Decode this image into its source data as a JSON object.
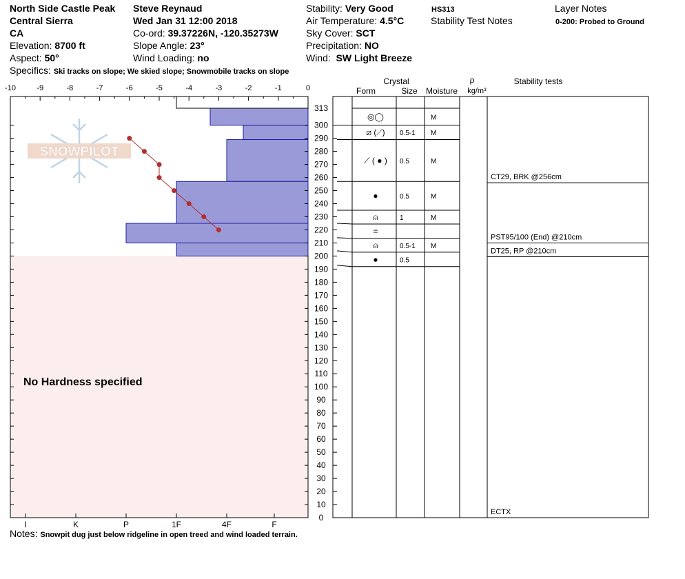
{
  "header": {
    "location": "North Side Castle Peak",
    "region": "Central Sierra",
    "state": "CA",
    "elevation_label": "Elevation:",
    "elevation": "8700 ft",
    "aspect_label": "Aspect:",
    "aspect": "50°",
    "observer": "Steve Reynaud",
    "datetime": "Wed Jan 31 12:00 2018",
    "coord_label": "Co-ord:",
    "coord": "39.37226N, -120.35273W",
    "slope_label": "Slope Angle:",
    "slope": "23°",
    "wind_loading_label": "Wind Loading:",
    "wind_loading": "no",
    "stability_label": "Stability:",
    "stability": "Very Good",
    "air_temp_label": "Air Temperature:",
    "air_temp": "4.5°C",
    "sky_label": "Sky Cover:",
    "sky": "SCT",
    "precip_label": "Precipitation:",
    "precip": "NO",
    "wind_label": "Wind:",
    "wind": "SW Light Breeze",
    "hs": "HS313",
    "stability_notes_title": "Stability Test Notes",
    "layer_notes_title": "Layer Notes",
    "layer_note": "0-200: Probed to Ground",
    "specifics_label": "Specifics:",
    "specifics": "Ski tracks on slope; We skied slope; Snowmobile tracks on slope"
  },
  "notes": {
    "label": "Notes:",
    "text": "Snowpit dug just below ridgeline in open treed and wind loaded terrain."
  },
  "no_hardness": "No Hardness specified",
  "logo_text": "SNOWPILOT",
  "table_headers": {
    "crystal": "Crystal",
    "form": "Form",
    "size": "Size",
    "moisture": "Moisture",
    "rho": "ρ",
    "density_unit": "kg/m³",
    "stability_tests": "Stability tests"
  },
  "colors": {
    "hardness_fill": "#9a9ad8",
    "hardness_stroke": "#1a1aa0",
    "temperature": "#b03030",
    "no_hardness_bg": "#fdeeee"
  },
  "chart_data": {
    "type": "snow_profile",
    "temperature_axis": {
      "ticks": [
        -10,
        -9,
        -8,
        -7,
        -6,
        -5,
        -4,
        -3,
        -2,
        -1,
        0
      ],
      "range": [
        -10,
        0
      ],
      "unit": "°C"
    },
    "hardness_axis": {
      "ticks": [
        "I",
        "K",
        "P",
        "1F",
        "4F",
        "F"
      ]
    },
    "depth_axis": {
      "range": [
        0,
        313
      ],
      "top_label": 313,
      "unit": "cm",
      "ticks": [
        300,
        290,
        280,
        270,
        260,
        250,
        240,
        230,
        220,
        210,
        200,
        190,
        180,
        170,
        160,
        150,
        140,
        130,
        120,
        110,
        100,
        90,
        80,
        70,
        60,
        50,
        40,
        30,
        20,
        10,
        0
      ]
    },
    "hardness_layers": [
      {
        "top": 313,
        "bottom": 300,
        "hardness": "4F+"
      },
      {
        "top": 300,
        "bottom": 289,
        "hardness": "4F-"
      },
      {
        "top": 289,
        "bottom": 257,
        "hardness": "4F"
      },
      {
        "top": 257,
        "bottom": 225,
        "hardness": "1F"
      },
      {
        "top": 225,
        "bottom": 210,
        "hardness": "P"
      },
      {
        "top": 210,
        "bottom": 200,
        "hardness": "1F"
      }
    ],
    "temperature_profile": [
      {
        "depth": 290,
        "temp": -6.0
      },
      {
        "depth": 280,
        "temp": -5.5
      },
      {
        "depth": 270,
        "temp": -5.0
      },
      {
        "depth": 260,
        "temp": -5.0
      },
      {
        "depth": 250,
        "temp": -4.5
      },
      {
        "depth": 240,
        "temp": -4.0
      },
      {
        "depth": 230,
        "temp": -3.5
      },
      {
        "depth": 220,
        "temp": -3.0
      }
    ],
    "crystal_layers": [
      {
        "top": 313,
        "bottom": 300,
        "form": "◎◯",
        "size": "",
        "moisture": "M"
      },
      {
        "top": 300,
        "bottom": 289,
        "form": "⧄ (⟋)",
        "size": "0.5-1",
        "moisture": "M"
      },
      {
        "top": 289,
        "bottom": 257,
        "form": "⟋ ( ● )",
        "size": "0.5",
        "moisture": "M"
      },
      {
        "top": 257,
        "bottom": 235,
        "form": "●",
        "size": "0.5",
        "moisture": "M"
      },
      {
        "top": 235,
        "bottom": 225,
        "form": "⍝",
        "size": "1",
        "moisture": "M"
      },
      {
        "top": 225,
        "bottom": 214,
        "form": "=",
        "size": "",
        "moisture": ""
      },
      {
        "top": 214,
        "bottom": 204,
        "form": "⍝",
        "size": "0.5-1",
        "moisture": "M"
      },
      {
        "top": 204,
        "bottom": 193,
        "form": "●",
        "size": "0.5",
        "moisture": ""
      }
    ],
    "stability_tests": [
      {
        "depth": 256,
        "label": "CT29, BRK @256cm"
      },
      {
        "depth": 210,
        "label": "PST95/100 (End) @210cm"
      },
      {
        "depth": 210,
        "label": "DT25, RP @210cm"
      },
      {
        "depth": 0,
        "label": "ECTX"
      }
    ]
  }
}
